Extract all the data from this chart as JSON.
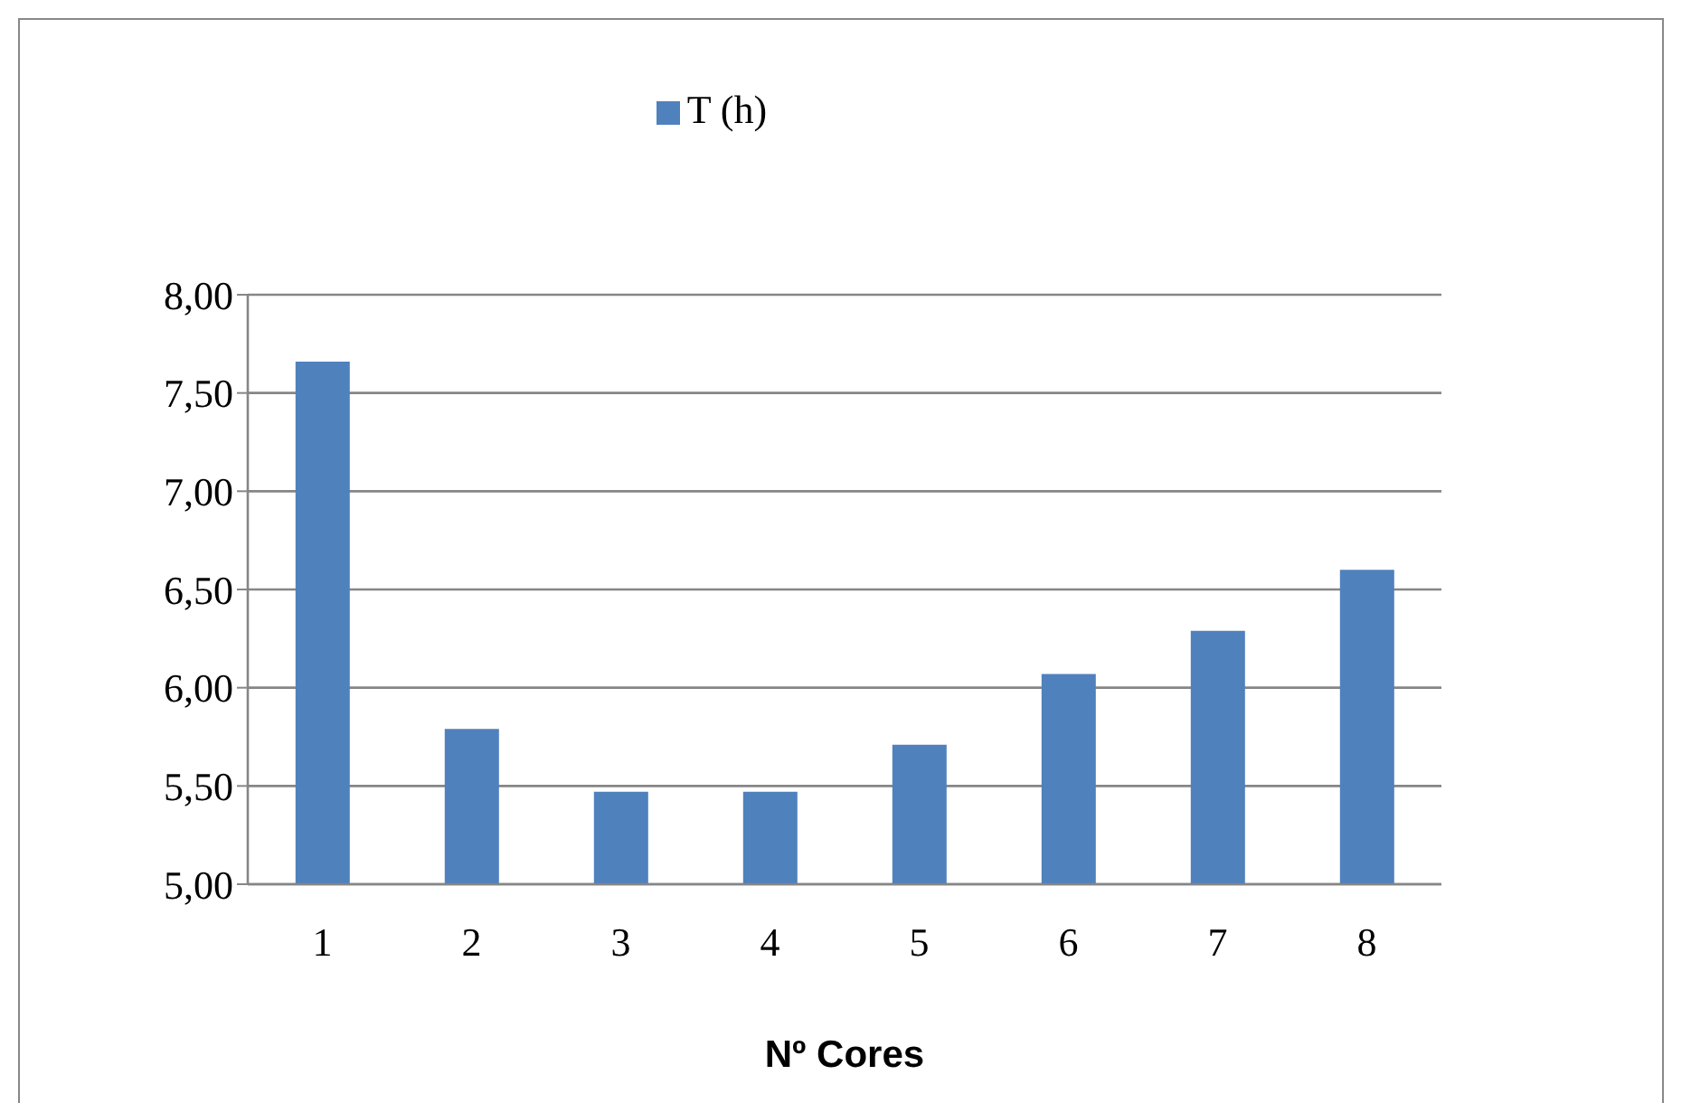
{
  "chart_data": {
    "type": "bar",
    "xlabel": "Nº Cores",
    "categories": [
      "1",
      "2",
      "3",
      "4",
      "5",
      "6",
      "7",
      "8"
    ],
    "series": [
      {
        "name": "T (h)",
        "color": "#4f81bd",
        "values": [
          7.66,
          5.79,
          5.47,
          5.47,
          5.71,
          6.07,
          6.29,
          6.6
        ]
      }
    ],
    "ylim": [
      5,
      8
    ],
    "yticks": [
      {
        "value": 5,
        "label": "5,00"
      },
      {
        "value": 5.5,
        "label": "5,50"
      },
      {
        "value": 6,
        "label": "6,00"
      },
      {
        "value": 6.5,
        "label": "6,50"
      },
      {
        "value": 7,
        "label": "7,00"
      },
      {
        "value": 7.5,
        "label": "7,50"
      },
      {
        "value": 8,
        "label": "8,00"
      }
    ],
    "grid": "y",
    "legend": "top"
  }
}
